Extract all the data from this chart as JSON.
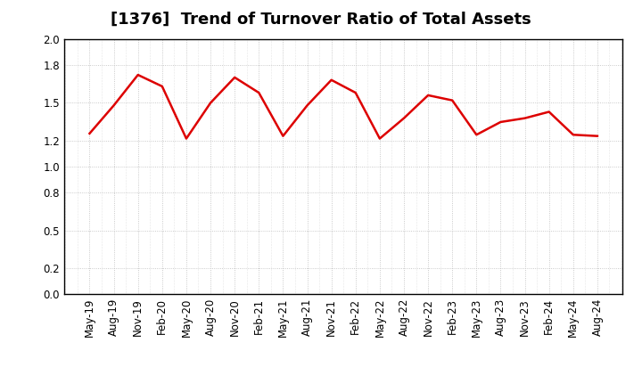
{
  "title": "[1376]  Trend of Turnover Ratio of Total Assets",
  "line_color": "#dd0000",
  "line_width": 1.8,
  "background_color": "#ffffff",
  "grid_color": "#bbbbbb",
  "ylim": [
    0.0,
    2.0
  ],
  "yticks": [
    0.0,
    0.2,
    0.5,
    0.8,
    1.0,
    1.2,
    1.5,
    1.8,
    2.0
  ],
  "x_labels": [
    "May-19",
    "Aug-19",
    "Nov-19",
    "Feb-20",
    "May-20",
    "Aug-20",
    "Nov-20",
    "Feb-21",
    "May-21",
    "Aug-21",
    "Nov-21",
    "Feb-22",
    "May-22",
    "Aug-22",
    "Nov-22",
    "Feb-23",
    "May-23",
    "Aug-23",
    "Nov-23",
    "Feb-24",
    "May-24",
    "Aug-24"
  ],
  "values": [
    1.26,
    1.48,
    1.72,
    1.63,
    1.22,
    1.5,
    1.7,
    1.58,
    1.24,
    1.48,
    1.68,
    1.58,
    1.22,
    1.38,
    1.56,
    1.52,
    1.25,
    1.35,
    1.38,
    1.43,
    1.25,
    1.24
  ],
  "title_fontsize": 13,
  "tick_fontsize": 8.5,
  "fig_width": 7.2,
  "fig_height": 4.4,
  "dpi": 100
}
